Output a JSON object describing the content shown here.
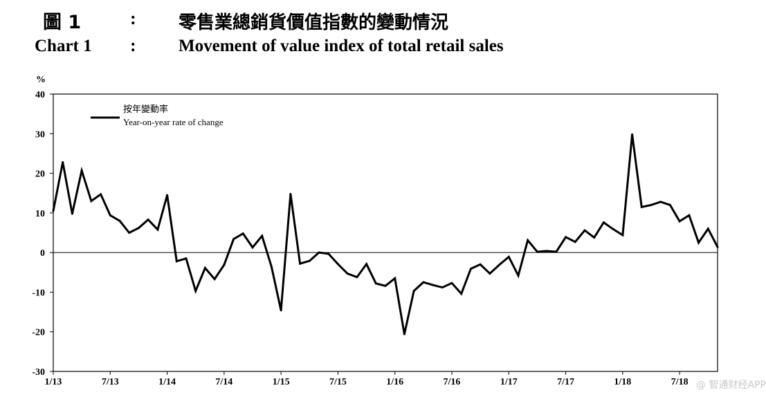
{
  "header": {
    "zh_label": "圖 1",
    "zh_colon": ":",
    "zh_title": "零售業總銷貨價值指數的變動情況",
    "en_label": "Chart 1",
    "en_colon": ":",
    "en_title": "Movement of value index of total retail sales"
  },
  "watermark": "@ 智通财经APP",
  "chart_data": {
    "type": "line",
    "unit_label": "%",
    "ylim": [
      -30,
      40
    ],
    "yticks": [
      -30,
      -20,
      -10,
      0,
      10,
      20,
      30,
      40
    ],
    "ytick_labels": [
      "-30",
      "-20",
      "-10",
      "0",
      "10",
      "20",
      "30",
      "40"
    ],
    "xtick_labels": [
      "1/13",
      "7/13",
      "1/14",
      "7/14",
      "1/15",
      "7/15",
      "1/16",
      "7/16",
      "1/17",
      "7/17",
      "1/18",
      "7/18"
    ],
    "xtick_months": [
      0,
      6,
      12,
      18,
      24,
      30,
      36,
      42,
      48,
      54,
      60,
      66
    ],
    "x_start": "1/13",
    "x_end": "12/18",
    "zero_line": true,
    "legend": {
      "placement": "top-left",
      "zh": "按年變動率",
      "en": "Year-on-year rate of change"
    },
    "series": [
      {
        "name": "Year-on-year rate of change",
        "color": "#000000",
        "values": [
          10.5,
          22.8,
          9.8,
          20.7,
          13.0,
          14.7,
          9.4,
          8.0,
          5.0,
          6.2,
          8.3,
          5.8,
          14.5,
          -2.2,
          -1.5,
          -9.7,
          -3.9,
          -6.7,
          -3.1,
          3.4,
          4.8,
          1.3,
          4.2,
          -3.6,
          -14.6,
          14.8,
          -2.8,
          -2.1,
          0.0,
          -0.3,
          -2.9,
          -5.3,
          -6.2,
          -2.9,
          -7.8,
          -8.4,
          -6.5,
          -20.6,
          -9.7,
          -7.5,
          -8.2,
          -8.8,
          -7.7,
          -10.4,
          -4.1,
          -3.0,
          -5.3,
          -3.1,
          -1.1,
          -5.8,
          3.1,
          0.2,
          0.4,
          0.2,
          3.9,
          2.7,
          5.6,
          3.8,
          7.6,
          5.9,
          4.4,
          29.8,
          11.5,
          12.0,
          12.8,
          12.0,
          7.9,
          9.4,
          2.5,
          6.0,
          1.4
        ]
      }
    ]
  }
}
